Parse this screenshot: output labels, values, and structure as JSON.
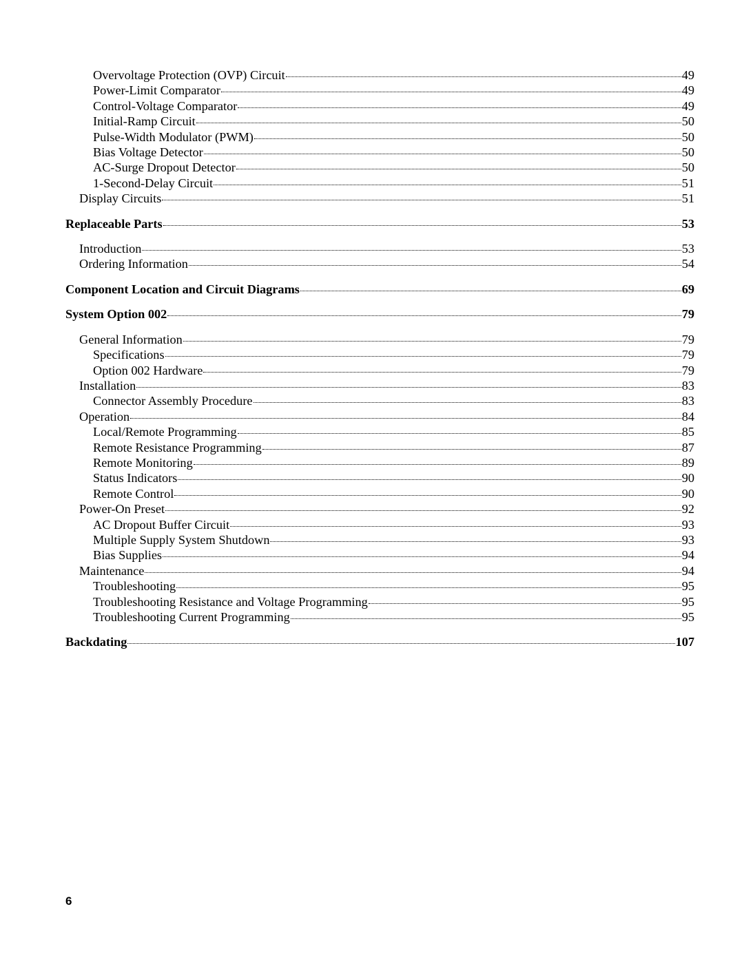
{
  "pageNumber": "6",
  "entries": [
    {
      "label": "Overvoltage Protection (OVP) Circuit",
      "page": "49",
      "level": 2,
      "bold": false,
      "gapAfter": false
    },
    {
      "label": "Power-Limit Comparator",
      "page": "49",
      "level": 2,
      "bold": false,
      "gapAfter": false
    },
    {
      "label": "Control-Voltage Comparator",
      "page": "49",
      "level": 2,
      "bold": false,
      "gapAfter": false
    },
    {
      "label": "Initial-Ramp Circuit",
      "page": "50",
      "level": 2,
      "bold": false,
      "gapAfter": false
    },
    {
      "label": "Pulse-Width Modulator (PWM)",
      "page": "50",
      "level": 2,
      "bold": false,
      "gapAfter": false
    },
    {
      "label": "Bias Voltage Detector",
      "page": "50",
      "level": 2,
      "bold": false,
      "gapAfter": false
    },
    {
      "label": "AC-Surge Dropout Detector",
      "page": "50",
      "level": 2,
      "bold": false,
      "gapAfter": false
    },
    {
      "label": "1-Second-Delay Circuit",
      "page": "51",
      "level": 2,
      "bold": false,
      "gapAfter": false
    },
    {
      "label": "Display Circuits",
      "page": "51",
      "level": 1,
      "bold": false,
      "gapAfter": true
    },
    {
      "label": "Replaceable Parts",
      "page": "53",
      "level": 0,
      "bold": true,
      "gapAfter": true
    },
    {
      "label": "Introduction",
      "page": "53",
      "level": 1,
      "bold": false,
      "gapAfter": false
    },
    {
      "label": "Ordering Information",
      "page": "54",
      "level": 1,
      "bold": false,
      "gapAfter": true
    },
    {
      "label": "Component Location and Circuit Diagrams",
      "page": "69",
      "level": 0,
      "bold": true,
      "gapAfter": true
    },
    {
      "label": "System Option 002",
      "page": "79",
      "level": 0,
      "bold": true,
      "gapAfter": true
    },
    {
      "label": "General Information",
      "page": "79",
      "level": 1,
      "bold": false,
      "gapAfter": false
    },
    {
      "label": "Specifications",
      "page": "79",
      "level": 2,
      "bold": false,
      "gapAfter": false
    },
    {
      "label": "Option 002 Hardware",
      "page": "79",
      "level": 2,
      "bold": false,
      "gapAfter": false
    },
    {
      "label": "Installation",
      "page": "83",
      "level": 1,
      "bold": false,
      "gapAfter": false
    },
    {
      "label": "Connector Assembly Procedure",
      "page": "83",
      "level": 2,
      "bold": false,
      "gapAfter": false
    },
    {
      "label": "Operation",
      "page": "84",
      "level": 1,
      "bold": false,
      "gapAfter": false
    },
    {
      "label": "Local/Remote Programming",
      "page": "85",
      "level": 2,
      "bold": false,
      "gapAfter": false
    },
    {
      "label": "Remote Resistance Programming",
      "page": "87",
      "level": 2,
      "bold": false,
      "gapAfter": false
    },
    {
      "label": "Remote Monitoring",
      "page": "89",
      "level": 2,
      "bold": false,
      "gapAfter": false
    },
    {
      "label": "Status Indicators",
      "page": "90",
      "level": 2,
      "bold": false,
      "gapAfter": false
    },
    {
      "label": "Remote Control",
      "page": "90",
      "level": 2,
      "bold": false,
      "gapAfter": false
    },
    {
      "label": "Power-On Preset",
      "page": "92",
      "level": 1,
      "bold": false,
      "gapAfter": false
    },
    {
      "label": "AC Dropout Buffer Circuit",
      "page": "93",
      "level": 2,
      "bold": false,
      "gapAfter": false
    },
    {
      "label": "Multiple Supply System Shutdown",
      "page": "93",
      "level": 2,
      "bold": false,
      "gapAfter": false
    },
    {
      "label": "Bias Supplies",
      "page": "94",
      "level": 2,
      "bold": false,
      "gapAfter": false
    },
    {
      "label": "Maintenance",
      "page": "94",
      "level": 1,
      "bold": false,
      "gapAfter": false
    },
    {
      "label": "Troubleshooting",
      "page": "95",
      "level": 2,
      "bold": false,
      "gapAfter": false
    },
    {
      "label": "Troubleshooting Resistance and Voltage Programming",
      "page": "95",
      "level": 2,
      "bold": false,
      "gapAfter": false
    },
    {
      "label": "Troubleshooting Current Programming",
      "page": "95",
      "level": 2,
      "bold": false,
      "gapAfter": true
    },
    {
      "label": "Backdating",
      "page": "107",
      "level": 0,
      "bold": true,
      "gapAfter": false
    }
  ]
}
